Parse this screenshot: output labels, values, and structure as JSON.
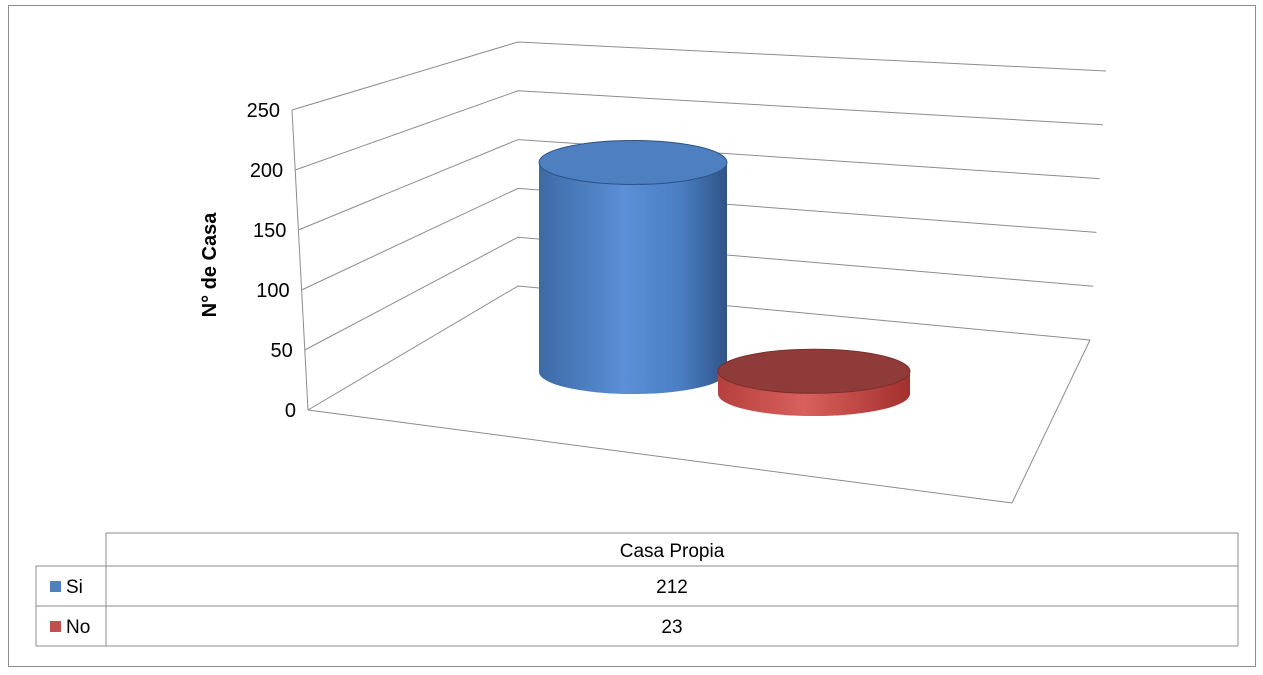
{
  "chart_data": {
    "type": "bar",
    "style": "3d-cylinder",
    "categories": [
      "Casa Propia"
    ],
    "series": [
      {
        "name": "Si",
        "values": [
          212
        ],
        "color": "#4f81bd"
      },
      {
        "name": "No",
        "values": [
          23
        ],
        "color": "#c0504d"
      }
    ],
    "ylabel": "N° de Casa",
    "xlabel": "",
    "ylim": [
      0,
      250
    ],
    "yticks": [
      "0",
      "50",
      "100",
      "150",
      "200",
      "250"
    ],
    "grid": true,
    "legend": "data-table"
  }
}
